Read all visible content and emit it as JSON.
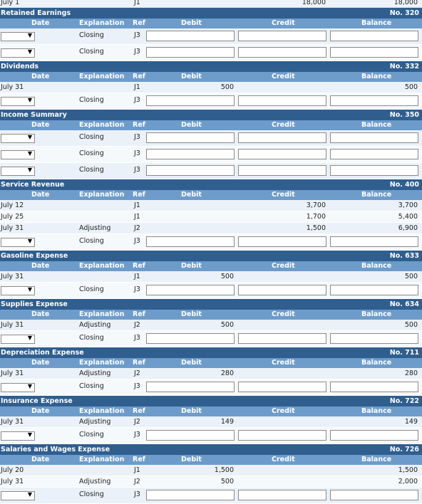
{
  "top_strip": {
    "date": "July 1",
    "ref": "J1",
    "credit": "18,000",
    "balance": "18,000"
  },
  "columns": {
    "date": "Date",
    "explanation": "Explanation",
    "ref": "Ref",
    "debit": "Debit",
    "credit": "Credit",
    "balance": "Balance"
  },
  "accounts": [
    {
      "name": "Retained Earnings",
      "number": "No. 320",
      "entries": [],
      "closing_rows": [
        {
          "explanation": "Closing",
          "ref": "J3"
        },
        {
          "explanation": "Closing",
          "ref": "J3"
        }
      ]
    },
    {
      "name": "Dividends",
      "number": "No. 332",
      "entries": [
        {
          "date": "July 31",
          "explanation": "",
          "ref": "J1",
          "debit": "500",
          "credit": "",
          "balance": "500"
        }
      ],
      "closing_rows": [
        {
          "explanation": "Closing",
          "ref": "J3"
        }
      ]
    },
    {
      "name": "Income Summary",
      "number": "No. 350",
      "entries": [],
      "closing_rows": [
        {
          "explanation": "Closing",
          "ref": "J3"
        },
        {
          "explanation": "Closing",
          "ref": "J3"
        },
        {
          "explanation": "Closing",
          "ref": "J3"
        }
      ]
    },
    {
      "name": "Service Revenue",
      "number": "No. 400",
      "entries": [
        {
          "date": "July 12",
          "explanation": "",
          "ref": "J1",
          "debit": "",
          "credit": "3,700",
          "balance": "3,700"
        },
        {
          "date": "July 25",
          "explanation": "",
          "ref": "J1",
          "debit": "",
          "credit": "1,700",
          "balance": "5,400"
        },
        {
          "date": "July 31",
          "explanation": "Adjusting",
          "ref": "J2",
          "debit": "",
          "credit": "1,500",
          "balance": "6,900"
        }
      ],
      "closing_rows": [
        {
          "explanation": "Closing",
          "ref": "J3"
        }
      ]
    },
    {
      "name": "Gasoline Expense",
      "number": "No. 633",
      "entries": [
        {
          "date": "July 31",
          "explanation": "",
          "ref": "J1",
          "debit": "500",
          "credit": "",
          "balance": "500"
        }
      ],
      "closing_rows": [
        {
          "explanation": "Closing",
          "ref": "J3"
        }
      ]
    },
    {
      "name": "Supplies Expense",
      "number": "No. 634",
      "entries": [
        {
          "date": "July 31",
          "explanation": "Adjusting",
          "ref": "J2",
          "debit": "500",
          "credit": "",
          "balance": "500"
        }
      ],
      "closing_rows": [
        {
          "explanation": "Closing",
          "ref": "J3"
        }
      ]
    },
    {
      "name": "Depreciation Expense",
      "number": "No. 711",
      "entries": [
        {
          "date": "July 31",
          "explanation": "Adjusting",
          "ref": "J2",
          "debit": "280",
          "credit": "",
          "balance": "280"
        }
      ],
      "closing_rows": [
        {
          "explanation": "Closing",
          "ref": "J3"
        }
      ]
    },
    {
      "name": "Insurance Expense",
      "number": "No. 722",
      "entries": [
        {
          "date": "July 31",
          "explanation": "Adjusting",
          "ref": "J2",
          "debit": "149",
          "credit": "",
          "balance": "149"
        }
      ],
      "closing_rows": [
        {
          "explanation": "Closing",
          "ref": "J3"
        }
      ]
    },
    {
      "name": "Salaries and Wages Expense",
      "number": "No. 726",
      "entries": [
        {
          "date": "July 20",
          "explanation": "",
          "ref": "J1",
          "debit": "1,500",
          "credit": "",
          "balance": "1,500"
        },
        {
          "date": "July 31",
          "explanation": "Adjusting",
          "ref": "J2",
          "debit": "500",
          "credit": "",
          "balance": "2,000"
        }
      ],
      "closing_rows": [
        {
          "explanation": "Closing",
          "ref": "J3"
        }
      ]
    }
  ],
  "colors": {
    "account_header": "#2f5e8f",
    "column_header": "#6d9ccb",
    "row_odd": "#eaf1f8",
    "row_even": "#f6f9fc"
  },
  "icons": {
    "dropdown": "triangle-down-icon"
  }
}
